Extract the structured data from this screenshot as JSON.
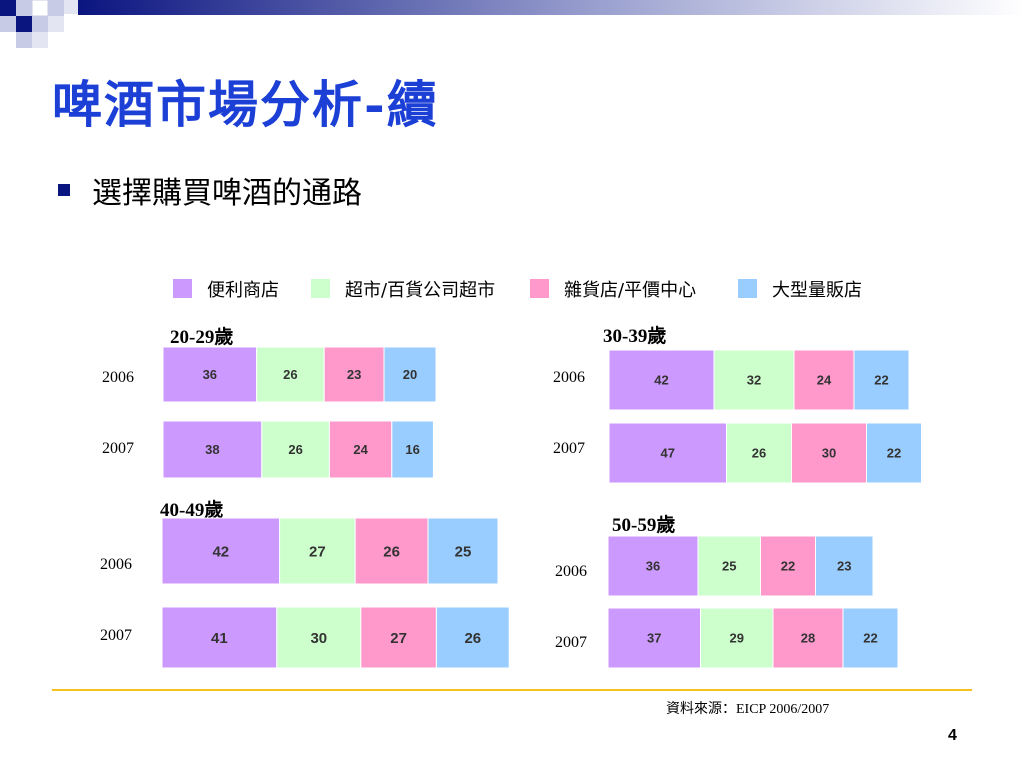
{
  "slide": {
    "title": "啤酒市場分析-續",
    "bullet": "選擇購買啤酒的通路",
    "source": "資料來源：EICP 2006/2007",
    "page_number": "4"
  },
  "chart_data": {
    "type": "bar",
    "stacked": true,
    "orientation": "horizontal",
    "legend": {
      "placement": "top",
      "entries": [
        {
          "name": "便利商店",
          "color": "#cc99ff"
        },
        {
          "name": "超市/百貨公司超市",
          "color": "#ccffcc"
        },
        {
          "name": "雜貨店/平價中心",
          "color": "#ff99cc"
        },
        {
          "name": "大型量販店",
          "color": "#99ccff"
        }
      ]
    },
    "panels": [
      {
        "title": "20-29歲",
        "categories": [
          "2006",
          "2007"
        ],
        "series": [
          {
            "name": "便利商店",
            "values": [
              36,
              38
            ]
          },
          {
            "name": "超市/百貨公司超市",
            "values": [
              26,
              26
            ]
          },
          {
            "name": "雜貨店/平價中心",
            "values": [
              23,
              24
            ]
          },
          {
            "name": "大型量販店",
            "values": [
              20,
              16
            ]
          }
        ]
      },
      {
        "title": "30-39歲",
        "categories": [
          "2006",
          "2007"
        ],
        "series": [
          {
            "name": "便利商店",
            "values": [
              42,
              47
            ]
          },
          {
            "name": "超市/百貨公司超市",
            "values": [
              32,
              26
            ]
          },
          {
            "name": "雜貨店/平價中心",
            "values": [
              24,
              30
            ]
          },
          {
            "name": "大型量販店",
            "values": [
              22,
              22
            ]
          }
        ]
      },
      {
        "title": "40-49歲",
        "categories": [
          "2006",
          "2007"
        ],
        "series": [
          {
            "name": "便利商店",
            "values": [
              42,
              41
            ]
          },
          {
            "name": "超市/百貨公司超市",
            "values": [
              27,
              30
            ]
          },
          {
            "name": "雜貨店/平價中心",
            "values": [
              26,
              27
            ]
          },
          {
            "name": "大型量販店",
            "values": [
              25,
              26
            ]
          }
        ]
      },
      {
        "title": "50-59歲",
        "categories": [
          "2006",
          "2007"
        ],
        "series": [
          {
            "name": "便利商店",
            "values": [
              36,
              37
            ]
          },
          {
            "name": "超市/百貨公司超市",
            "values": [
              25,
              29
            ]
          },
          {
            "name": "雜貨店/平價中心",
            "values": [
              22,
              28
            ]
          },
          {
            "name": "大型量販店",
            "values": [
              23,
              22
            ]
          }
        ]
      }
    ]
  }
}
